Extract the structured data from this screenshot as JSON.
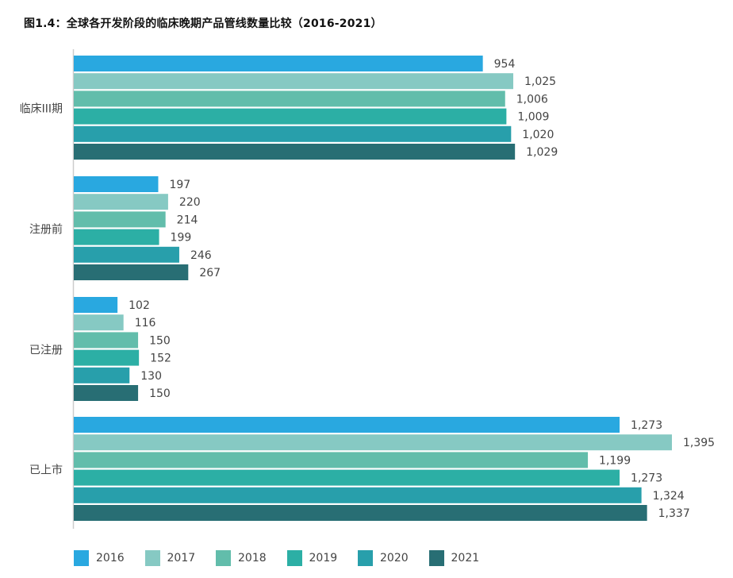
{
  "title": "图1.4：全球各开发阶段的临床晚期产品管线数量比较（2016-2021）",
  "chart_data": {
    "type": "bar",
    "orientation": "horizontal",
    "title": "图1.4：全球各开发阶段的临床晚期产品管线数量比较（2016-2021）",
    "xlabel": "",
    "ylabel": "",
    "xlim": [
      0,
      1500
    ],
    "grid": false,
    "legend_position": "bottom",
    "categories": [
      "临床III期",
      "注册前",
      "已注册",
      "已上市"
    ],
    "series": [
      {
        "name": "2016",
        "color": "#29a8e0",
        "values": [
          954,
          197,
          102,
          1273
        ],
        "labels": [
          "954",
          "197",
          "102",
          "1,273"
        ]
      },
      {
        "name": "2017",
        "color": "#86c9c3",
        "values": [
          1025,
          220,
          116,
          1395
        ],
        "labels": [
          "1,025",
          "220",
          "116",
          "1,395"
        ]
      },
      {
        "name": "2018",
        "color": "#62bdab",
        "values": [
          1006,
          214,
          150,
          1199
        ],
        "labels": [
          "1,006",
          "214",
          "150",
          "1,199"
        ]
      },
      {
        "name": "2019",
        "color": "#2cafa5",
        "values": [
          1009,
          199,
          152,
          1273
        ],
        "labels": [
          "1,009",
          "199",
          "152",
          "1,273"
        ]
      },
      {
        "name": "2020",
        "color": "#289fab",
        "values": [
          1020,
          246,
          130,
          1324
        ],
        "labels": [
          "1,020",
          "246",
          "130",
          "1,324"
        ]
      },
      {
        "name": "2021",
        "color": "#286e74",
        "values": [
          1029,
          267,
          150,
          1337
        ],
        "labels": [
          "1,029",
          "267",
          "150",
          "1,337"
        ]
      }
    ]
  }
}
